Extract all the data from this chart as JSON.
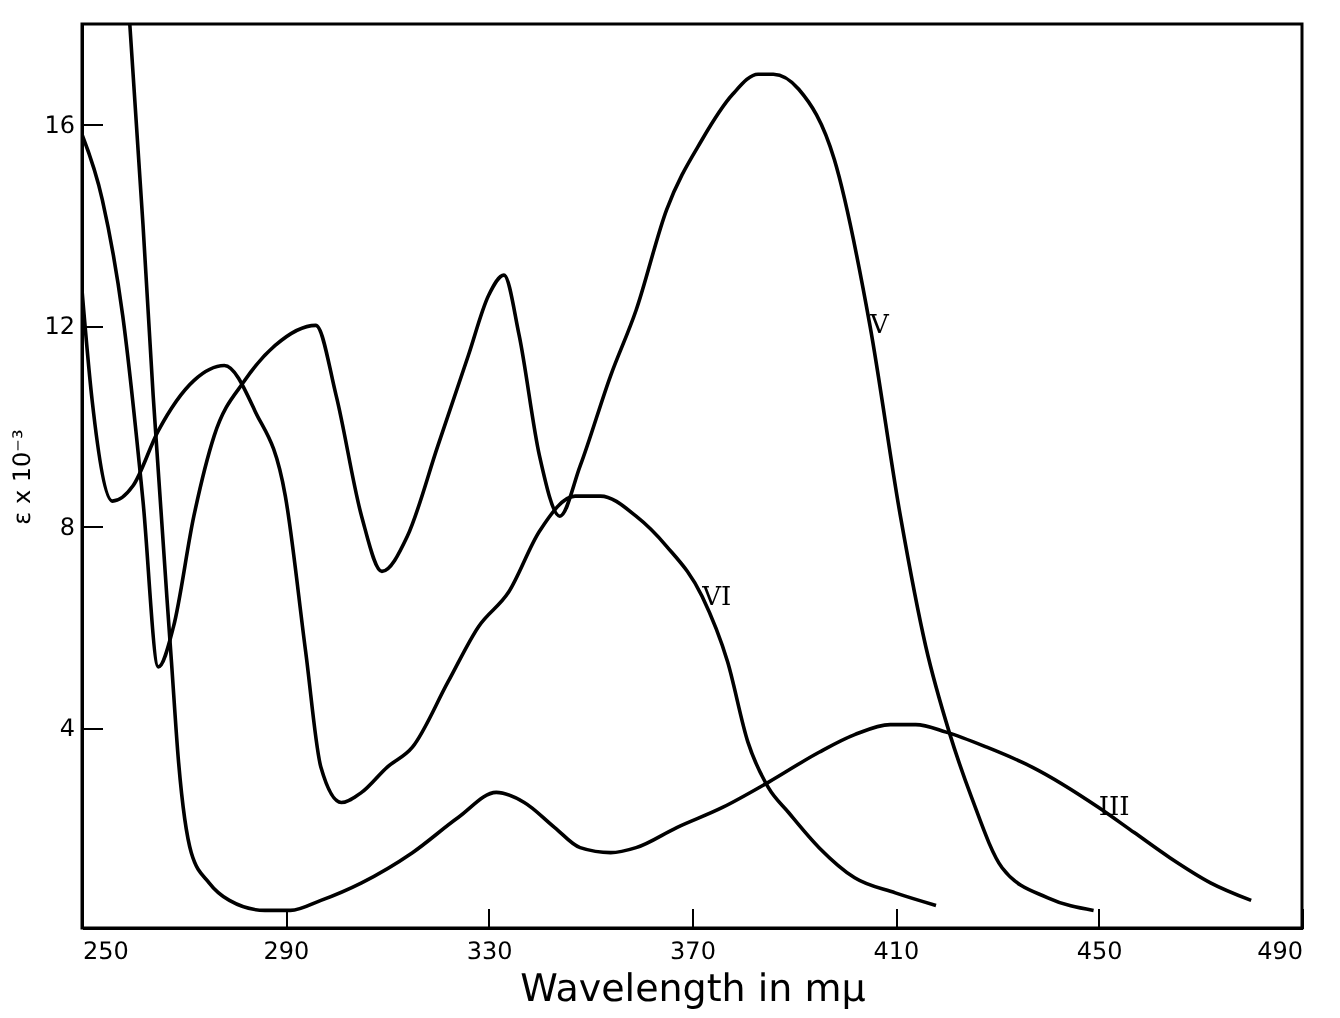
{
  "chart_data": {
    "type": "line",
    "xlabel": "Wavelength in mμ",
    "ylabel": "ε x 10⁻³",
    "xlim": [
      250,
      490
    ],
    "xticks": [
      250,
      290,
      330,
      370,
      410,
      450,
      490
    ],
    "ylim": [
      0,
      18
    ],
    "yticks": [
      4,
      8,
      12,
      16
    ],
    "grid": false,
    "legend": false,
    "marker": "none",
    "line_style": "solid",
    "series": [
      {
        "name": "V",
        "color": "#000000",
        "x": [
          250,
          254,
          258,
          262,
          265,
          268,
          272,
          276,
          282,
          288,
          296,
          300,
          305,
          309,
          314,
          320,
          326,
          330,
          333,
          336,
          340,
          344,
          348,
          354,
          359,
          365,
          372,
          378,
          383,
          386,
          391,
          398,
          405,
          411,
          416,
          420.6,
          425,
          431,
          440,
          449
        ],
        "values": [
          15.8,
          14.5,
          12.2,
          8.5,
          5.2,
          6.0,
          8.2,
          9.8,
          10.9,
          11.6,
          12.0,
          10.6,
          8.2,
          7.1,
          7.8,
          9.6,
          11.4,
          12.6,
          13.0,
          11.8,
          9.4,
          8.2,
          9.2,
          11.0,
          12.3,
          14.3,
          15.7,
          16.6,
          17.0,
          17.0,
          16.7,
          15.3,
          12.0,
          8.2,
          5.6,
          3.9,
          2.6,
          1.2,
          0.6,
          0.35
        ]
      },
      {
        "name": "VI",
        "color": "#000000",
        "x": [
          250,
          252,
          256,
          260,
          265,
          272,
          278,
          284,
          290,
          294,
          297,
          301,
          305,
          310,
          315,
          322,
          328,
          334,
          340,
          347,
          352,
          359,
          365,
          372,
          377,
          381,
          385,
          389,
          395,
          402,
          410,
          418
        ],
        "values": [
          12.7,
          10.5,
          8.5,
          8.8,
          9.9,
          10.9,
          11.2,
          10.3,
          8.6,
          5.5,
          3.2,
          2.5,
          2.7,
          3.2,
          3.6,
          4.9,
          6.0,
          6.7,
          7.9,
          8.6,
          8.6,
          8.2,
          7.6,
          6.6,
          5.3,
          3.7,
          2.8,
          2.3,
          1.6,
          1.0,
          0.7,
          0.45
        ]
      },
      {
        "name": "III",
        "color": "#000000",
        "x": [
          259.4,
          262,
          264,
          267.6,
          269,
          271.5,
          275,
          279,
          286,
          291,
          297,
          305,
          315,
          324,
          331.5,
          337,
          343,
          348,
          354,
          359,
          367,
          376,
          385,
          395,
          402,
          409,
          414,
          420,
          428,
          437,
          450,
          457,
          464,
          472,
          480
        ],
        "values": [
          18,
          14.0,
          10.6,
          5.3,
          3.3,
          1.5,
          0.9,
          0.55,
          0.35,
          0.35,
          0.55,
          0.9,
          1.5,
          2.2,
          2.7,
          2.5,
          2.0,
          1.6,
          1.5,
          1.6,
          2.0,
          2.4,
          2.9,
          3.5,
          3.85,
          4.05,
          4.05,
          3.9,
          3.6,
          3.2,
          2.4,
          1.9,
          1.4,
          0.9,
          0.55
        ]
      }
    ]
  }
}
